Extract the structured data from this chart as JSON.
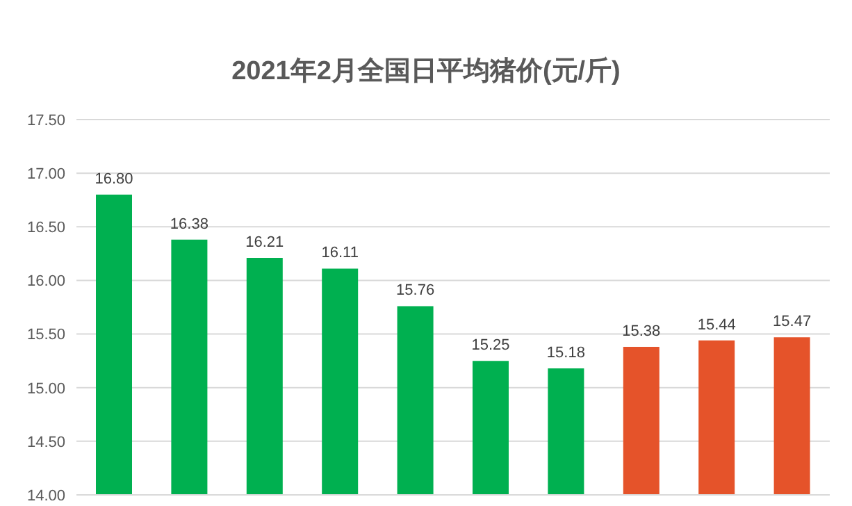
{
  "chart_data": {
    "type": "bar",
    "title": "2021年2月全国日平均猪价(元/斤)",
    "categories": [
      null,
      null,
      null,
      null,
      null,
      null,
      null,
      null,
      null,
      null
    ],
    "values": [
      16.8,
      16.38,
      16.21,
      16.11,
      15.76,
      15.25,
      15.18,
      15.38,
      15.44,
      15.47
    ],
    "colors": [
      "#00b050",
      "#00b050",
      "#00b050",
      "#00b050",
      "#00b050",
      "#00b050",
      "#00b050",
      "#e5532a",
      "#e5532a",
      "#e5532a"
    ],
    "value_labels": [
      "16.80",
      "16.38",
      "16.21",
      "16.11",
      "15.76",
      "15.25",
      "15.18",
      "15.38",
      "15.44",
      "15.47"
    ],
    "ylim": [
      14,
      17.5
    ],
    "yticks": [
      {
        "value": 14,
        "label": "14.00"
      },
      {
        "value": 14.5,
        "label": "14.50"
      },
      {
        "value": 15,
        "label": "15.00"
      },
      {
        "value": 15.5,
        "label": "15.50"
      },
      {
        "value": 16,
        "label": "16.00"
      },
      {
        "value": 16.5,
        "label": "16.50"
      },
      {
        "value": 17,
        "label": "17.00"
      },
      {
        "value": 17.5,
        "label": "17.50"
      }
    ],
    "grid": "y"
  }
}
